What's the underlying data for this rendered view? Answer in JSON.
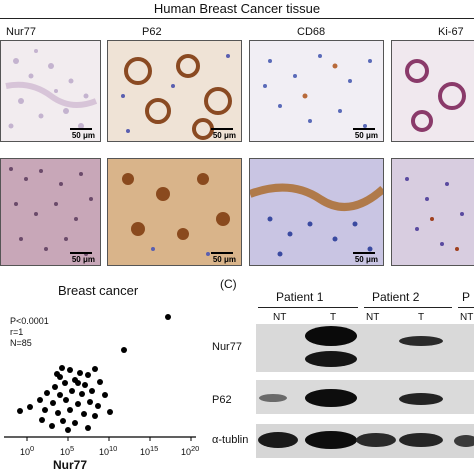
{
  "figure": {
    "title": "Human Breast Cancer tissue",
    "columns": [
      "Nur77",
      "P62",
      "CD68",
      "Ki-67"
    ],
    "scale_label": "50 μm",
    "colors": {
      "hematoxylin": "#5a5fb0",
      "dab": "#a0582a",
      "background": "#ffffff"
    }
  },
  "scatter": {
    "title": "Breast cancer",
    "stats": [
      "P<0.0001",
      "r=1",
      "N=85"
    ],
    "x_ticks": [
      "10",
      "10",
      "10",
      "10",
      "10"
    ],
    "x_exps": [
      "0",
      "5",
      "10",
      "15",
      "20"
    ],
    "xlabel": "Nur77"
  },
  "western": {
    "panel_label": "(C)",
    "patients": [
      "Patient 1",
      "Patient 2",
      "P"
    ],
    "lanes": [
      "NT",
      "T",
      "NT",
      "T",
      "NT"
    ],
    "bands": [
      "Nur77",
      "P62",
      "α-tublin"
    ]
  }
}
